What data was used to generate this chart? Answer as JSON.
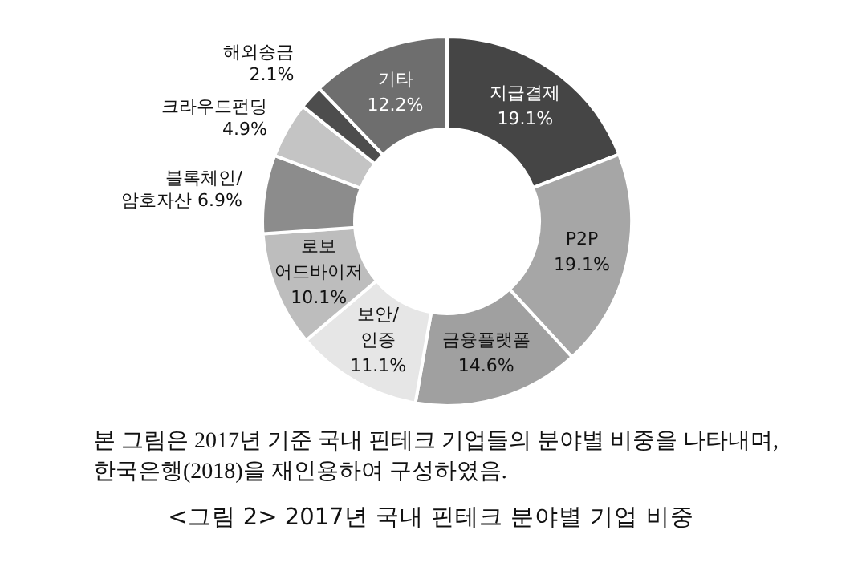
{
  "chart_data": {
    "type": "donut",
    "title": "<그림 2> 2017년 국내 핀테크 분야별 기업 비중",
    "annotations": [
      "본 그림은 2017년 기준 국내 핀테크 기업들의 분야별 비중을 나타내며,",
      "한국은행(2018)을 재인용하여 구성하였음."
    ],
    "categories": [
      "지급결제",
      "P2P",
      "금융플랫폼",
      "보안/인증",
      "로보 어드바이저",
      "블록체인/암호자산",
      "크라우드펀딩",
      "해외송금",
      "기타"
    ],
    "values": [
      19.1,
      19.1,
      14.6,
      11.1,
      10.1,
      6.9,
      4.9,
      2.1,
      12.2
    ],
    "value_labels": [
      "19.1%",
      "19.1%",
      "14.6%",
      "11.1%",
      "10.1%",
      "6.9%",
      "4.9%",
      "2.1%",
      "12.2%"
    ],
    "colors": [
      "#454545",
      "#a6a6a6",
      "#a0a0a0",
      "#e6e6e6",
      "#bdbdbd",
      "#8c8c8c",
      "#c4c4c4",
      "#4d4d4d",
      "#6e6e6e"
    ],
    "legend": false
  }
}
